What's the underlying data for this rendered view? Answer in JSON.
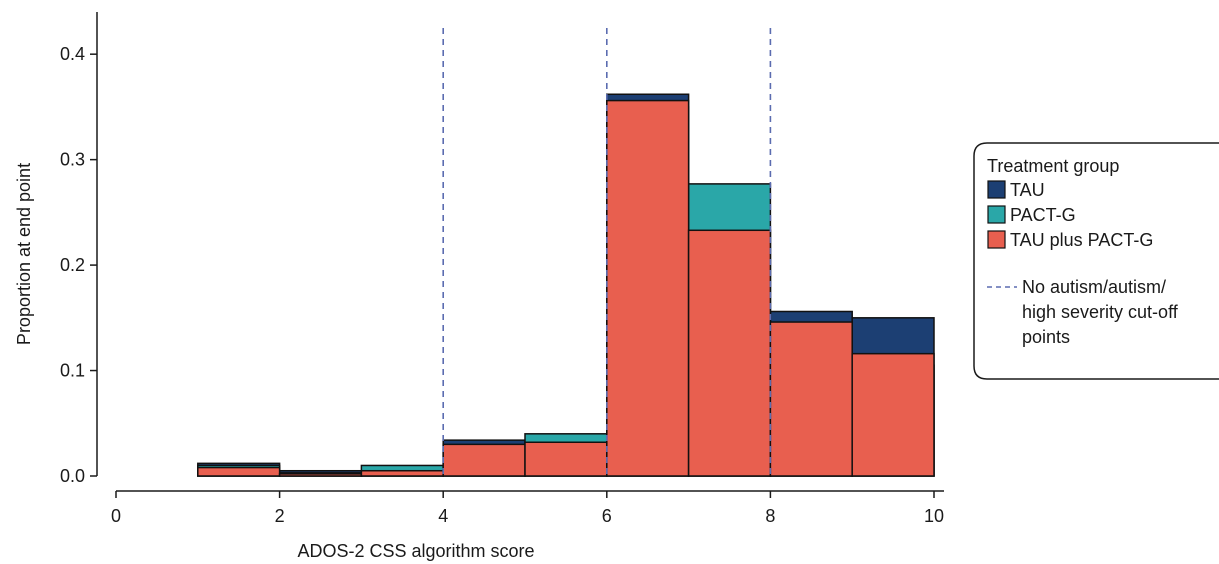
{
  "chart_data": {
    "type": "bar",
    "subtype": "overlaid-histogram",
    "xlabel": "ADOS-2 CSS algorithm score",
    "ylabel": "Proportion at end point",
    "xlim": [
      0,
      10
    ],
    "ylim": [
      0,
      0.44
    ],
    "x_ticks": [
      "0",
      "2",
      "4",
      "6",
      "8",
      "10"
    ],
    "y_ticks": [
      "0.0",
      "0.1",
      "0.2",
      "0.3",
      "0.4"
    ],
    "bins": [
      [
        1,
        2
      ],
      [
        2,
        3
      ],
      [
        3,
        4
      ],
      [
        4,
        5
      ],
      [
        5,
        6
      ],
      [
        6,
        7
      ],
      [
        7,
        8
      ],
      [
        8,
        9
      ],
      [
        9,
        10
      ]
    ],
    "series": [
      {
        "name": "TAU",
        "color": "#1c3f73",
        "values": [
          0.012,
          0.005,
          0.003,
          0.034,
          0.022,
          0.362,
          0.233,
          0.156,
          0.15
        ]
      },
      {
        "name": "PACT-G",
        "color": "#2aa7a8",
        "values": [
          0.01,
          0.003,
          0.01,
          0.025,
          0.04,
          0.35,
          0.277,
          0.14,
          0.105
        ]
      },
      {
        "name": "TAU plus PACT-G",
        "color": "#e85f4f",
        "values": [
          0.008,
          0.002,
          0.005,
          0.03,
          0.032,
          0.356,
          0.233,
          0.146,
          0.116
        ]
      }
    ],
    "cutoff_lines": {
      "x": [
        4,
        6,
        8
      ],
      "style": "dashed",
      "color": "#5b6cb0"
    },
    "legend": {
      "title": "Treatment group",
      "cutoff_label_lines": [
        "No autism/autism/",
        "high severity cut-off",
        "points"
      ],
      "position": "right"
    },
    "grid": false
  }
}
